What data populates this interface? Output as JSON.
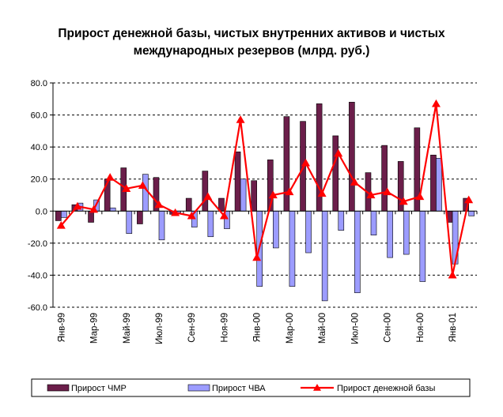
{
  "chart_data": {
    "type": "bar",
    "title_line1": "Прирост денежной базы, чистых внутренних активов и чистых",
    "title_line2": "международных резервов (млрд. руб.)",
    "ylim": [
      -60,
      80
    ],
    "yticks": [
      80,
      60,
      40,
      20,
      0,
      -20,
      -40,
      -60
    ],
    "ytick_labels": [
      "80.0",
      "60.0",
      "40.0",
      "20.0",
      "0.0",
      "-20.0",
      "-40.0",
      "-60.0"
    ],
    "grid": true,
    "legend_position": "bottom",
    "x_tick_labels": [
      {
        "index": 0,
        "label": "Янв-99"
      },
      {
        "index": 2,
        "label": "Мар-99"
      },
      {
        "index": 4,
        "label": "Май-99"
      },
      {
        "index": 6,
        "label": "Июл-99"
      },
      {
        "index": 8,
        "label": "Сен-99"
      },
      {
        "index": 10,
        "label": "Ноя-99"
      },
      {
        "index": 12,
        "label": "Янв-00"
      },
      {
        "index": 14,
        "label": "Мар-00"
      },
      {
        "index": 16,
        "label": "Май-00"
      },
      {
        "index": 18,
        "label": "Июл-00"
      },
      {
        "index": 20,
        "label": "Сен-00"
      },
      {
        "index": 22,
        "label": "Ноя-00"
      },
      {
        "index": 24,
        "label": "Янв-01"
      }
    ],
    "series": [
      {
        "name": "Прирост ЧМР",
        "kind": "bar",
        "color": "#6b1e4a",
        "values": [
          -6,
          4,
          -7,
          20,
          27,
          -8,
          21,
          -2,
          8,
          25,
          8,
          37,
          19,
          32,
          59,
          56,
          67,
          47,
          68,
          24,
          41,
          31,
          52,
          35,
          -7,
          8
        ]
      },
      {
        "name": "Прирост ЧВА",
        "kind": "bar",
        "color": "#9c9cff",
        "values": [
          -4,
          5,
          7,
          2,
          -14,
          23,
          -18,
          -1,
          -10,
          -16,
          -11,
          20,
          -47,
          -23,
          -47,
          -26,
          -56,
          -12,
          -51,
          -15,
          -29,
          -27,
          -44,
          33,
          -33,
          -3
        ]
      },
      {
        "name": "Прирост денежной базы",
        "kind": "line",
        "color": "#ff0000",
        "values": [
          -9,
          3,
          1,
          21,
          14,
          16,
          4,
          -1,
          -3,
          9,
          -3,
          57,
          -29,
          10,
          12,
          30,
          11,
          36,
          18,
          10,
          12,
          6,
          9,
          67,
          -40,
          7
        ]
      }
    ]
  }
}
